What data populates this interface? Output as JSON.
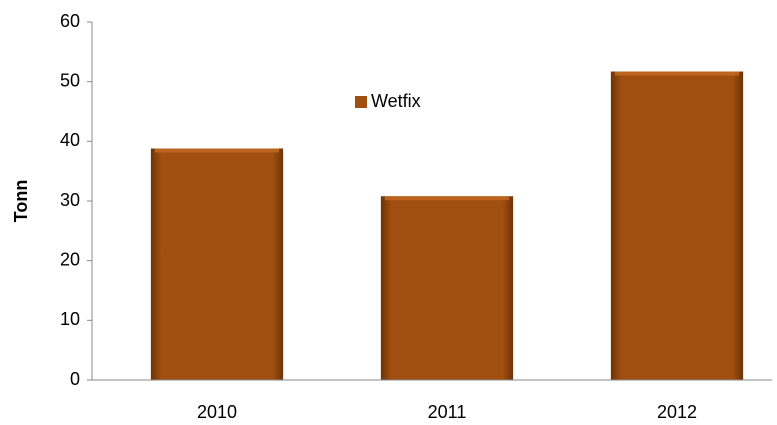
{
  "chart_data": {
    "type": "bar",
    "y_label": "Tonn",
    "categories": [
      "2010",
      "2011",
      "2012"
    ],
    "series": [
      {
        "name": "Wetfix",
        "color": "#a04f10",
        "values": [
          38.8,
          30.8,
          51.7
        ]
      }
    ],
    "ylim": [
      0,
      60
    ],
    "yticks": [
      0,
      10,
      20,
      30,
      40,
      50,
      60
    ],
    "grid": false,
    "legend": "top"
  }
}
